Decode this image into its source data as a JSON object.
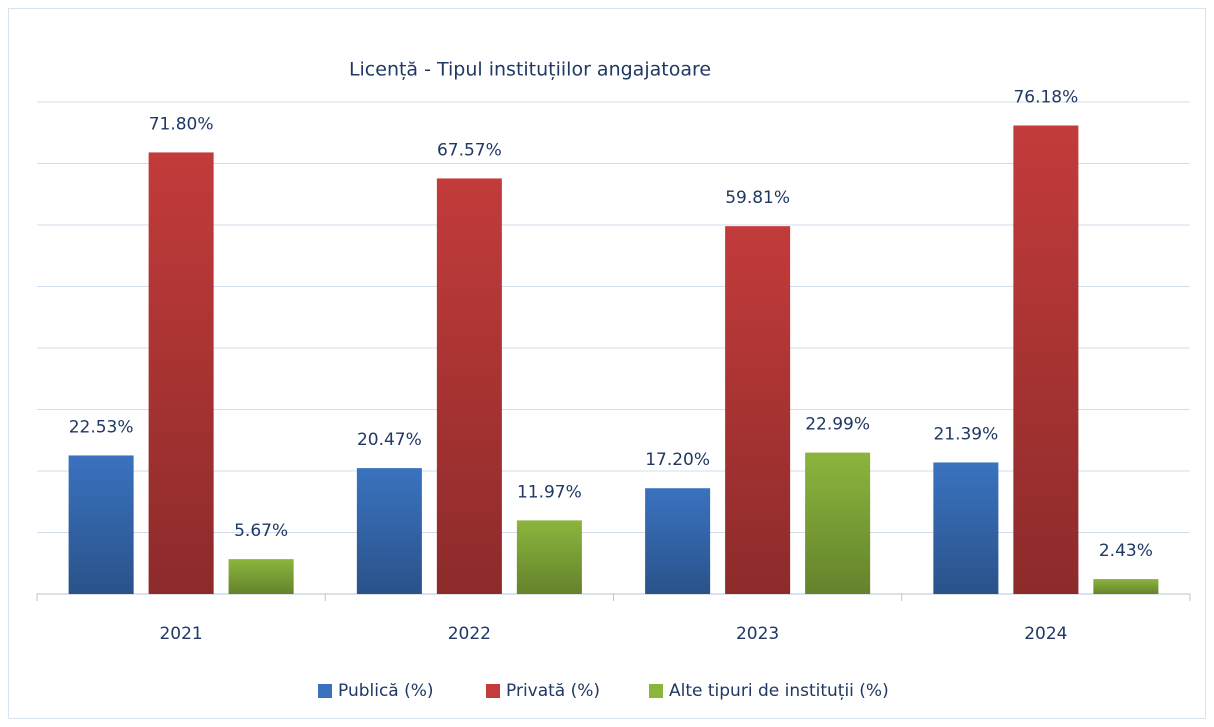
{
  "chart_data": {
    "type": "bar",
    "title": "Licență - Tipul instituțiilor angajatoare",
    "categories": [
      "2021",
      "2022",
      "2023",
      "2024"
    ],
    "series": [
      {
        "name": "Publică (%)",
        "color": "#3a72bf",
        "values": [
          22.53,
          20.47,
          17.2,
          21.39
        ],
        "value_labels": [
          "22.53%",
          "20.47%",
          "17.20%",
          "21.39%"
        ]
      },
      {
        "name": "Privată (%)",
        "color": "#c33b3b",
        "values": [
          71.8,
          67.57,
          59.81,
          76.18
        ],
        "value_labels": [
          "71.80%",
          "67.57%",
          "59.81%",
          "76.18%"
        ]
      },
      {
        "name": "Alte tipuri de instituții (%)",
        "color": "#8bb53d",
        "values": [
          5.67,
          11.97,
          22.99,
          2.43
        ],
        "value_labels": [
          "5.67%",
          "11.97%",
          "22.99%",
          "2.43%"
        ]
      }
    ],
    "ylim": [
      0,
      80
    ],
    "yticks": [
      0,
      10,
      20,
      30,
      40,
      50,
      60,
      70,
      80
    ],
    "grid": true,
    "legend": "bottom"
  }
}
